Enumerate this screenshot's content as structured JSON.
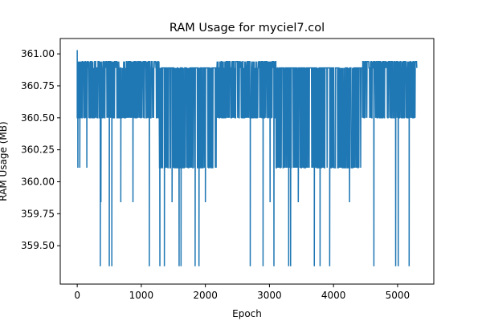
{
  "chart_data": {
    "type": "line",
    "title": "RAM Usage for myciel7.col",
    "xlabel": "Epoch",
    "ylabel": "RAM Usage (MB)",
    "xlim": [
      -265,
      5565
    ],
    "ylim": [
      359.2,
      361.12
    ],
    "x_ticks": [
      0,
      1000,
      2000,
      3000,
      4000,
      5000
    ],
    "y_ticks": [
      359.5,
      359.75,
      360.0,
      360.25,
      360.5,
      360.75,
      361.0
    ],
    "x_tick_labels": [
      "0",
      "1000",
      "2000",
      "3000",
      "4000",
      "5000"
    ],
    "y_tick_labels": [
      "359.50",
      "359.75",
      "360.00",
      "360.25",
      "360.50",
      "360.75",
      "361.00"
    ],
    "grid": false,
    "legend": "none",
    "series": [
      {
        "color": "#1f77b4",
        "x_start": 0,
        "x_end": 5300,
        "levels": [
          360.5,
          360.89,
          360.94,
          360.11,
          359.34,
          359.84,
          361.03
        ],
        "segments": [
          {
            "x": [
              0,
              1280
            ],
            "low": 360.5,
            "high": 360.94
          },
          {
            "x": [
              1280,
              2180
            ],
            "low": 360.11,
            "high": 360.89
          },
          {
            "x": [
              2180,
              3100
            ],
            "low": 360.5,
            "high": 360.94
          },
          {
            "x": [
              3100,
              4450
            ],
            "low": 360.11,
            "high": 360.89
          },
          {
            "x": [
              4450,
              5300
            ],
            "low": 360.5,
            "high": 360.94
          }
        ],
        "dips": [
          {
            "x": 0,
            "y": 361.03
          },
          {
            "x": 10,
            "y": 360.11
          },
          {
            "x": 40,
            "y": 360.11
          },
          {
            "x": 150,
            "y": 360.11
          },
          {
            "x": 360,
            "y": 359.34
          },
          {
            "x": 370,
            "y": 359.84
          },
          {
            "x": 500,
            "y": 359.34
          },
          {
            "x": 540,
            "y": 359.34
          },
          {
            "x": 680,
            "y": 359.84
          },
          {
            "x": 870,
            "y": 359.84
          },
          {
            "x": 1125,
            "y": 359.34
          },
          {
            "x": 1290,
            "y": 359.34
          },
          {
            "x": 1360,
            "y": 359.34
          },
          {
            "x": 1480,
            "y": 359.84
          },
          {
            "x": 1590,
            "y": 359.34
          },
          {
            "x": 1620,
            "y": 359.34
          },
          {
            "x": 1840,
            "y": 359.34
          },
          {
            "x": 1900,
            "y": 359.34
          },
          {
            "x": 2000,
            "y": 359.84
          },
          {
            "x": 2700,
            "y": 359.34
          },
          {
            "x": 2900,
            "y": 359.34
          },
          {
            "x": 3010,
            "y": 359.84
          },
          {
            "x": 3070,
            "y": 359.34
          },
          {
            "x": 3300,
            "y": 359.34
          },
          {
            "x": 3330,
            "y": 359.34
          },
          {
            "x": 3450,
            "y": 359.84
          },
          {
            "x": 3700,
            "y": 359.34
          },
          {
            "x": 3790,
            "y": 359.34
          },
          {
            "x": 3940,
            "y": 359.34
          },
          {
            "x": 4250,
            "y": 359.84
          },
          {
            "x": 4630,
            "y": 359.34
          },
          {
            "x": 4970,
            "y": 359.34
          },
          {
            "x": 5010,
            "y": 359.34
          },
          {
            "x": 5180,
            "y": 359.34
          }
        ]
      }
    ]
  }
}
